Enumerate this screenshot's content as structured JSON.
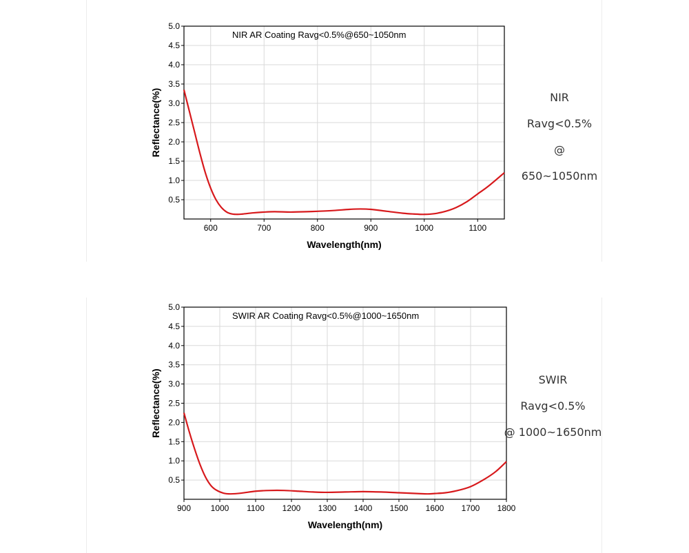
{
  "colors": {
    "curve": "#d7191c",
    "grid": "#d9d9d9",
    "axis": "#000000",
    "text": "#000000"
  },
  "chart_data": [
    {
      "type": "line",
      "title": "NIR AR Coating Ravg<0.5%@650~1050nm",
      "xlabel": "Wavelength(nm)",
      "ylabel": "Reflectance(%)",
      "xlim": [
        550,
        1150
      ],
      "ylim": [
        0,
        5.0
      ],
      "xticks": [
        600,
        700,
        800,
        900,
        1000,
        1100
      ],
      "yticks": [
        0.5,
        1.0,
        1.5,
        2.0,
        2.5,
        3.0,
        3.5,
        4.0,
        4.5,
        5.0
      ],
      "ytick_labels": [
        "0.5",
        "1.0",
        "1.5",
        "2.0",
        "2.5",
        "3.0",
        "3.5",
        "4.0",
        "4.5",
        "5.0"
      ],
      "grid": true,
      "series": [
        {
          "name": "Reflectance",
          "x": [
            550,
            560,
            570,
            580,
            590,
            600,
            610,
            620,
            630,
            640,
            650,
            660,
            680,
            700,
            720,
            750,
            780,
            800,
            830,
            860,
            880,
            900,
            930,
            960,
            980,
            1000,
            1020,
            1040,
            1060,
            1080,
            1100,
            1120,
            1150
          ],
          "y": [
            3.35,
            2.8,
            2.25,
            1.7,
            1.2,
            0.8,
            0.5,
            0.3,
            0.18,
            0.13,
            0.12,
            0.13,
            0.16,
            0.18,
            0.19,
            0.18,
            0.19,
            0.2,
            0.22,
            0.25,
            0.26,
            0.25,
            0.2,
            0.15,
            0.13,
            0.12,
            0.14,
            0.2,
            0.3,
            0.45,
            0.65,
            0.85,
            1.2
          ]
        }
      ]
    },
    {
      "type": "line",
      "title": "SWIR AR Coating Ravg<0.5%@1000~1650nm",
      "xlabel": "Wavelength(nm)",
      "ylabel": "Reflectance(%)",
      "xlim": [
        900,
        1800
      ],
      "ylim": [
        0,
        5.0
      ],
      "xticks": [
        900,
        1000,
        1100,
        1200,
        1300,
        1400,
        1500,
        1600,
        1700,
        1800
      ],
      "yticks": [
        0.5,
        1.0,
        1.5,
        2.0,
        2.5,
        3.0,
        3.5,
        4.0,
        4.5,
        5.0
      ],
      "ytick_labels": [
        "0.5",
        "1.0",
        "1.5",
        "2.0",
        "2.5",
        "3.0",
        "3.5",
        "4.0",
        "4.5",
        "5.0"
      ],
      "grid": true,
      "series": [
        {
          "name": "Reflectance",
          "x": [
            900,
            915,
            930,
            945,
            960,
            975,
            990,
            1010,
            1030,
            1060,
            1100,
            1140,
            1180,
            1220,
            1260,
            1300,
            1350,
            1400,
            1450,
            1500,
            1550,
            1580,
            1600,
            1630,
            1660,
            1700,
            1740,
            1770,
            1800
          ],
          "y": [
            2.25,
            1.75,
            1.3,
            0.9,
            0.58,
            0.36,
            0.24,
            0.16,
            0.14,
            0.16,
            0.21,
            0.23,
            0.23,
            0.21,
            0.19,
            0.18,
            0.19,
            0.2,
            0.19,
            0.17,
            0.15,
            0.14,
            0.15,
            0.17,
            0.22,
            0.33,
            0.53,
            0.72,
            0.98
          ]
        }
      ]
    }
  ],
  "notes": [
    {
      "line1": "NIR",
      "line2": "Ravg<0.5%",
      "line3": "@ 650~1050nm"
    },
    {
      "line1": "SWIR",
      "line2": "Ravg<0.5%",
      "line3": "@ 1000~1650nm"
    }
  ]
}
